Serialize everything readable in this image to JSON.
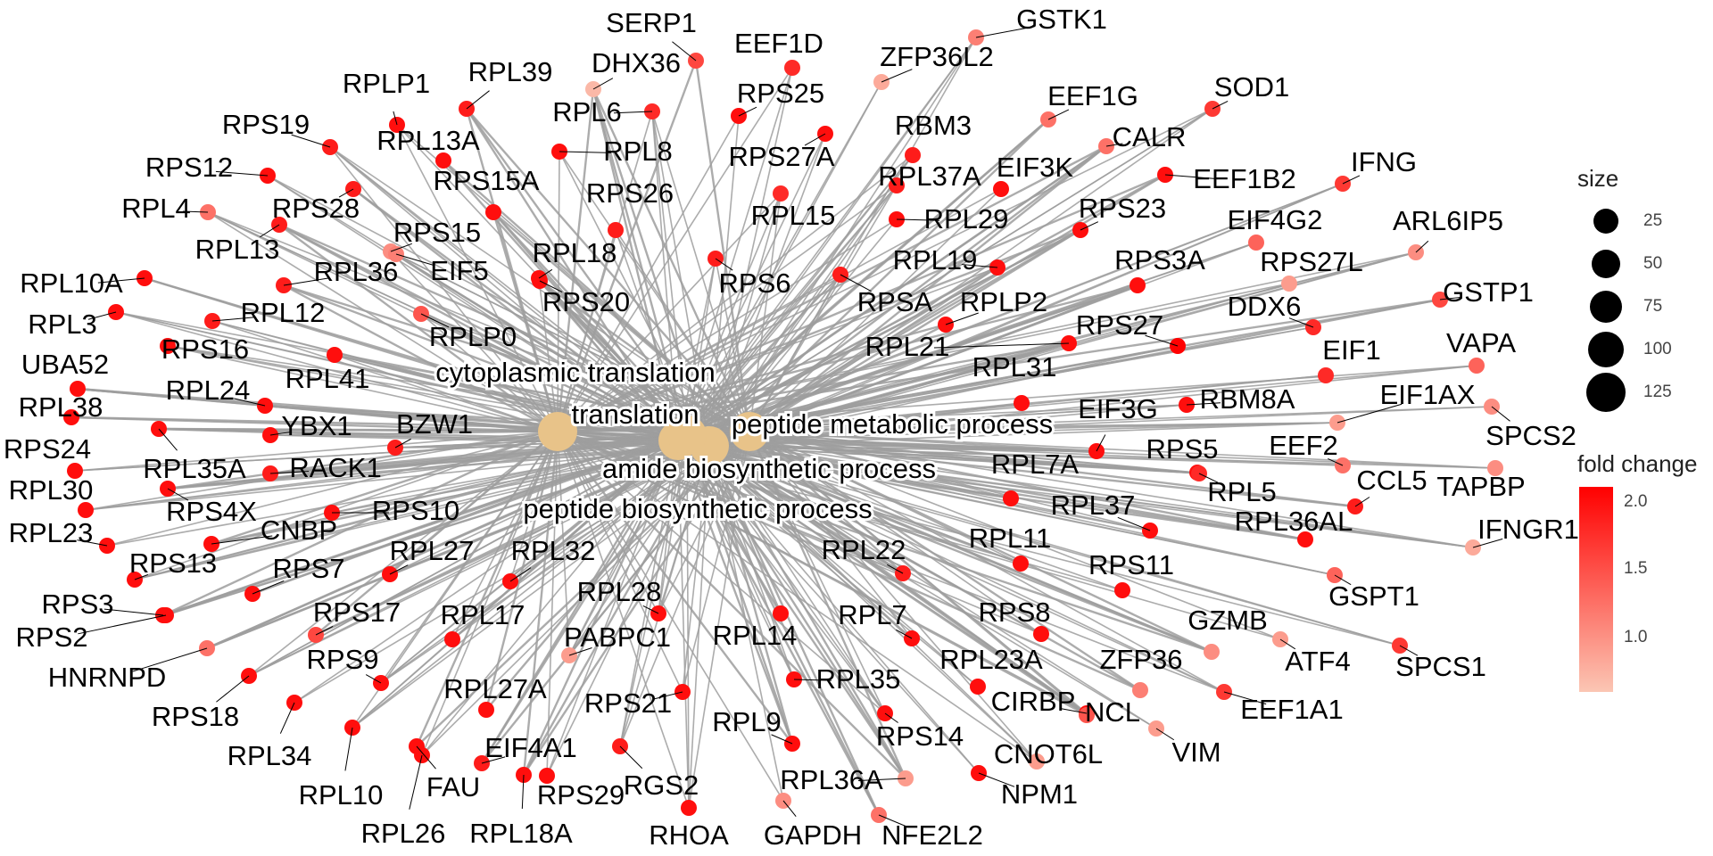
{
  "central_terms": [
    {
      "name": "cytoplasmic translation",
      "size": 125,
      "color": "#E8C389"
    },
    {
      "name": "translation",
      "size": 130,
      "color": "#E8C389"
    },
    {
      "name": "peptide metabolic process",
      "size": 140,
      "color": "#E8C389"
    },
    {
      "name": "amide biosynthetic process",
      "size": 140,
      "color": "#E8C389"
    },
    {
      "name": "peptide biosynthetic process",
      "size": 135,
      "color": "#E8C389"
    }
  ],
  "genes": [
    {
      "name": "SERP1",
      "fc": 1.6
    },
    {
      "name": "EEF1D",
      "fc": 1.8
    },
    {
      "name": "GSTK1",
      "fc": 1.2
    },
    {
      "name": "DHX36",
      "fc": 0.8
    },
    {
      "name": "ZFP36L2",
      "fc": 0.9
    },
    {
      "name": "RPLP1",
      "fc": 2.0
    },
    {
      "name": "RPL39",
      "fc": 1.9
    },
    {
      "name": "RPL6",
      "fc": 1.8
    },
    {
      "name": "RPS25",
      "fc": 2.0
    },
    {
      "name": "EEF1G",
      "fc": 1.3
    },
    {
      "name": "SOD1",
      "fc": 1.7
    },
    {
      "name": "RPS19",
      "fc": 1.9
    },
    {
      "name": "RPL13A",
      "fc": 2.0
    },
    {
      "name": "RPL8",
      "fc": 2.0
    },
    {
      "name": "RBM3",
      "fc": 1.9
    },
    {
      "name": "CALR",
      "fc": 1.3
    },
    {
      "name": "RPS27A",
      "fc": 2.0
    },
    {
      "name": "RPS12",
      "fc": 2.0
    },
    {
      "name": "RPS15A",
      "fc": 2.0
    },
    {
      "name": "RPL37A",
      "fc": 1.9
    },
    {
      "name": "EIF3K",
      "fc": 2.0
    },
    {
      "name": "EEF1B2",
      "fc": 2.0
    },
    {
      "name": "IFNG",
      "fc": 1.7
    },
    {
      "name": "RPL4",
      "fc": 1.3
    },
    {
      "name": "RPS28",
      "fc": 1.9
    },
    {
      "name": "RPS26",
      "fc": 1.9
    },
    {
      "name": "RPL15",
      "fc": 1.8
    },
    {
      "name": "RPS23",
      "fc": 2.0
    },
    {
      "name": "RPL29",
      "fc": 2.0
    },
    {
      "name": "EIF4G2",
      "fc": 1.4
    },
    {
      "name": "RPL13",
      "fc": 1.9
    },
    {
      "name": "RPS15",
      "fc": 1.1
    },
    {
      "name": "EIF5",
      "fc": 1.2
    },
    {
      "name": "RPL36",
      "fc": 1.9
    },
    {
      "name": "RPL18",
      "fc": 2.0
    },
    {
      "name": "ARL6IP5",
      "fc": 1.1
    },
    {
      "name": "RPL10A",
      "fc": 2.0
    },
    {
      "name": "RPS6",
      "fc": 1.9
    },
    {
      "name": "RPL19",
      "fc": 2.0
    },
    {
      "name": "RPS3A",
      "fc": 2.0
    },
    {
      "name": "RPS27L",
      "fc": 1.0
    },
    {
      "name": "RPL12",
      "fc": 1.9
    },
    {
      "name": "RPS20",
      "fc": 2.0
    },
    {
      "name": "RPSA",
      "fc": 1.9
    },
    {
      "name": "DDX6",
      "fc": 1.8
    },
    {
      "name": "GSTP1",
      "fc": 1.6
    },
    {
      "name": "RPL3",
      "fc": 2.0
    },
    {
      "name": "RPLP0",
      "fc": 1.5
    },
    {
      "name": "RPLP2",
      "fc": 2.0
    },
    {
      "name": "RPS27",
      "fc": 2.1
    },
    {
      "name": "RPS16",
      "fc": 2.0
    },
    {
      "name": "RPL21",
      "fc": 2.0
    },
    {
      "name": "EIF1",
      "fc": 1.8
    },
    {
      "name": "VAPA",
      "fc": 1.4
    },
    {
      "name": "UBA52",
      "fc": 2.0
    },
    {
      "name": "RPL41",
      "fc": 2.0
    },
    {
      "name": "RPL31",
      "fc": 2.0
    },
    {
      "name": "cytoplasmic translation_label",
      "fc": 0
    },
    {
      "name": "RPL24",
      "fc": 2.0
    },
    {
      "name": "RBM8A",
      "fc": 2.0
    },
    {
      "name": "EIF1AX",
      "fc": 1.0
    },
    {
      "name": "RPL38",
      "fc": 2.0
    },
    {
      "name": "YBX1",
      "fc": 2.0
    },
    {
      "name": "BZW1",
      "fc": 1.9
    },
    {
      "name": "EIF3G",
      "fc": 2.0
    },
    {
      "name": "SPCS2",
      "fc": 1.1
    },
    {
      "name": "RPS24",
      "fc": 2.0
    },
    {
      "name": "RPL35A",
      "fc": 2.0
    },
    {
      "name": "RPS5",
      "fc": 2.0
    },
    {
      "name": "EEF2",
      "fc": 1.3
    },
    {
      "name": "RACK1",
      "fc": 1.9
    },
    {
      "name": "RPL7A",
      "fc": 2.0
    },
    {
      "name": "RPL5",
      "fc": 1.8
    },
    {
      "name": "CCL5",
      "fc": 1.9
    },
    {
      "name": "TAPBP",
      "fc": 1.1
    },
    {
      "name": "RPL30",
      "fc": 2.0
    },
    {
      "name": "RPS4X",
      "fc": 2.0
    },
    {
      "name": "RPS10",
      "fc": 2.0
    },
    {
      "name": "RPL37",
      "fc": 2.0
    },
    {
      "name": "RPL36AL",
      "fc": 2.0
    },
    {
      "name": "IFNGR1",
      "fc": 0.9
    },
    {
      "name": "RPL23",
      "fc": 2.0
    },
    {
      "name": "CNBP",
      "fc": 2.0
    },
    {
      "name": "RPL11",
      "fc": 2.0
    },
    {
      "name": "RPS13",
      "fc": 2.0
    },
    {
      "name": "RPS7",
      "fc": 2.0
    },
    {
      "name": "RPL27",
      "fc": 2.0
    },
    {
      "name": "RPL32",
      "fc": 2.0
    },
    {
      "name": "RPL22",
      "fc": 1.9
    },
    {
      "name": "RPS11",
      "fc": 2.0
    },
    {
      "name": "GSPT1",
      "fc": 1.4
    },
    {
      "name": "RPS3",
      "fc": 2.0
    },
    {
      "name": "RPL28",
      "fc": 2.0
    },
    {
      "name": "RPS2",
      "fc": 2.0
    },
    {
      "name": "RPS17",
      "fc": 1.6
    },
    {
      "name": "RPL17",
      "fc": 2.0
    },
    {
      "name": "PABPC1",
      "fc": 1.0
    },
    {
      "name": "RPL14",
      "fc": 2.0
    },
    {
      "name": "RPL7",
      "fc": 2.0
    },
    {
      "name": "RPS8",
      "fc": 2.0
    },
    {
      "name": "GZMB",
      "fc": 1.1
    },
    {
      "name": "ATF4",
      "fc": 1.0
    },
    {
      "name": "SPCS1",
      "fc": 1.7
    },
    {
      "name": "HNRNPD",
      "fc": 1.3
    },
    {
      "name": "RPS9",
      "fc": 2.0
    },
    {
      "name": "RPL23A",
      "fc": 2.0
    },
    {
      "name": "ZFP36",
      "fc": 1.2
    },
    {
      "name": "EEF1A1",
      "fc": 1.7
    },
    {
      "name": "RPS18",
      "fc": 2.0
    },
    {
      "name": "RPL27A",
      "fc": 2.0
    },
    {
      "name": "RPL35",
      "fc": 2.0
    },
    {
      "name": "CIRBP",
      "fc": 2.0
    },
    {
      "name": "NCL",
      "fc": 1.5
    },
    {
      "name": "RPL34",
      "fc": 2.0
    },
    {
      "name": "RPS21",
      "fc": 2.0
    },
    {
      "name": "RPL9",
      "fc": 2.0
    },
    {
      "name": "RPS14",
      "fc": 2.0
    },
    {
      "name": "VIM",
      "fc": 1.0
    },
    {
      "name": "EIF4A1",
      "fc": 1.9
    },
    {
      "name": "CNOT6L",
      "fc": 1.0
    },
    {
      "name": "RPL10",
      "fc": 2.0
    },
    {
      "name": "FAU",
      "fc": 2.0
    },
    {
      "name": "RPS29",
      "fc": 2.0
    },
    {
      "name": "RGS2",
      "fc": 1.9
    },
    {
      "name": "RPL36A",
      "fc": 1.0
    },
    {
      "name": "NPM1",
      "fc": 2.0
    },
    {
      "name": "RPL26",
      "fc": 2.0
    },
    {
      "name": "RPL18A",
      "fc": 2.0
    },
    {
      "name": "RHOA",
      "fc": 2.0
    },
    {
      "name": "GAPDH",
      "fc": 1.1
    },
    {
      "name": "NFE2L2",
      "fc": 1.3
    }
  ],
  "legend": {
    "size_title": "size",
    "size_values": [
      "25",
      "50",
      "75",
      "100",
      "125"
    ],
    "color_title": "fold change",
    "color_ticks": [
      "2.0",
      "1.5",
      "1.0"
    ],
    "color_low": "#FBC6B4",
    "color_high": "#FF0000"
  }
}
